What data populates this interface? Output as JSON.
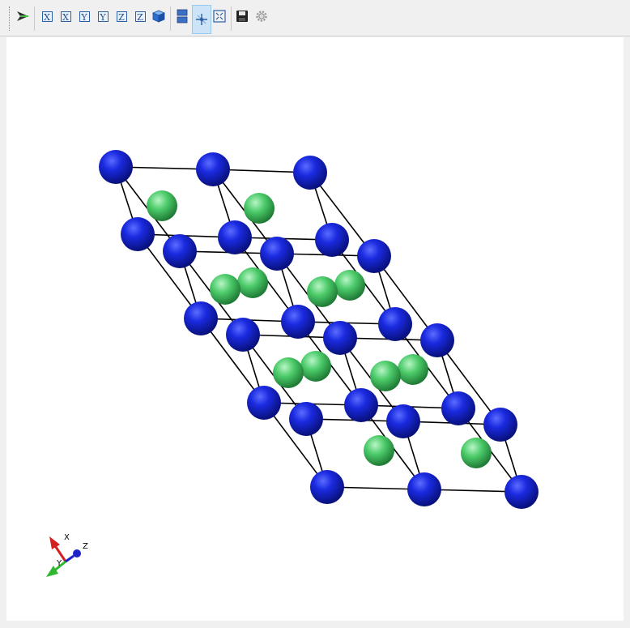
{
  "toolbar": {
    "view_x_a": "X",
    "view_x_b": "X",
    "view_y_a": "Y",
    "view_y_b": "Y",
    "view_z_a": "Z",
    "view_z_b": "Z"
  },
  "axes": {
    "x": "X",
    "y": "Y",
    "z": "Z"
  },
  "colors": {
    "blue_atom": "#1a2ad8",
    "green_atom": "#4ccb6a",
    "bond": "#000000",
    "x_axis": "#d42020",
    "y_axis": "#2fb82f",
    "z_axis": "#1c24c8"
  }
}
